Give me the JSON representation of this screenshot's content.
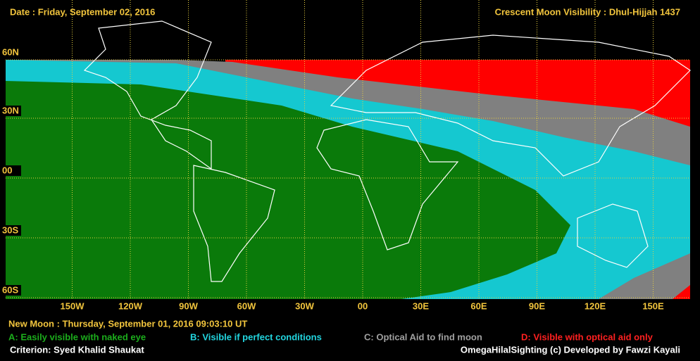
{
  "header": {
    "date": "Date : Friday, September 02, 2016",
    "title": "Crescent Moon Visibility : Dhul-Hijjah  1437"
  },
  "map": {
    "latitudes": [
      "60N",
      "30N",
      "00",
      "30S",
      "60S"
    ],
    "longitudes": [
      "150W",
      "120W",
      "90W",
      "60W",
      "30W",
      "00",
      "30E",
      "60E",
      "90E",
      "120E",
      "150E"
    ]
  },
  "footer": {
    "new_moon": "New Moon : Thursday, September 01, 2016  09:03:10  UT",
    "legend": [
      "A: Easily visible with naked eye",
      "B: Visible if perfect conditions",
      "C: Optical Aid to find moon",
      "D: Visible with optical aid only"
    ],
    "criterion": "Criterion: Syed Khalid Shaukat",
    "credit": "OmegaHilalSighting  (c) Developed by Fawzi Kayali"
  }
}
